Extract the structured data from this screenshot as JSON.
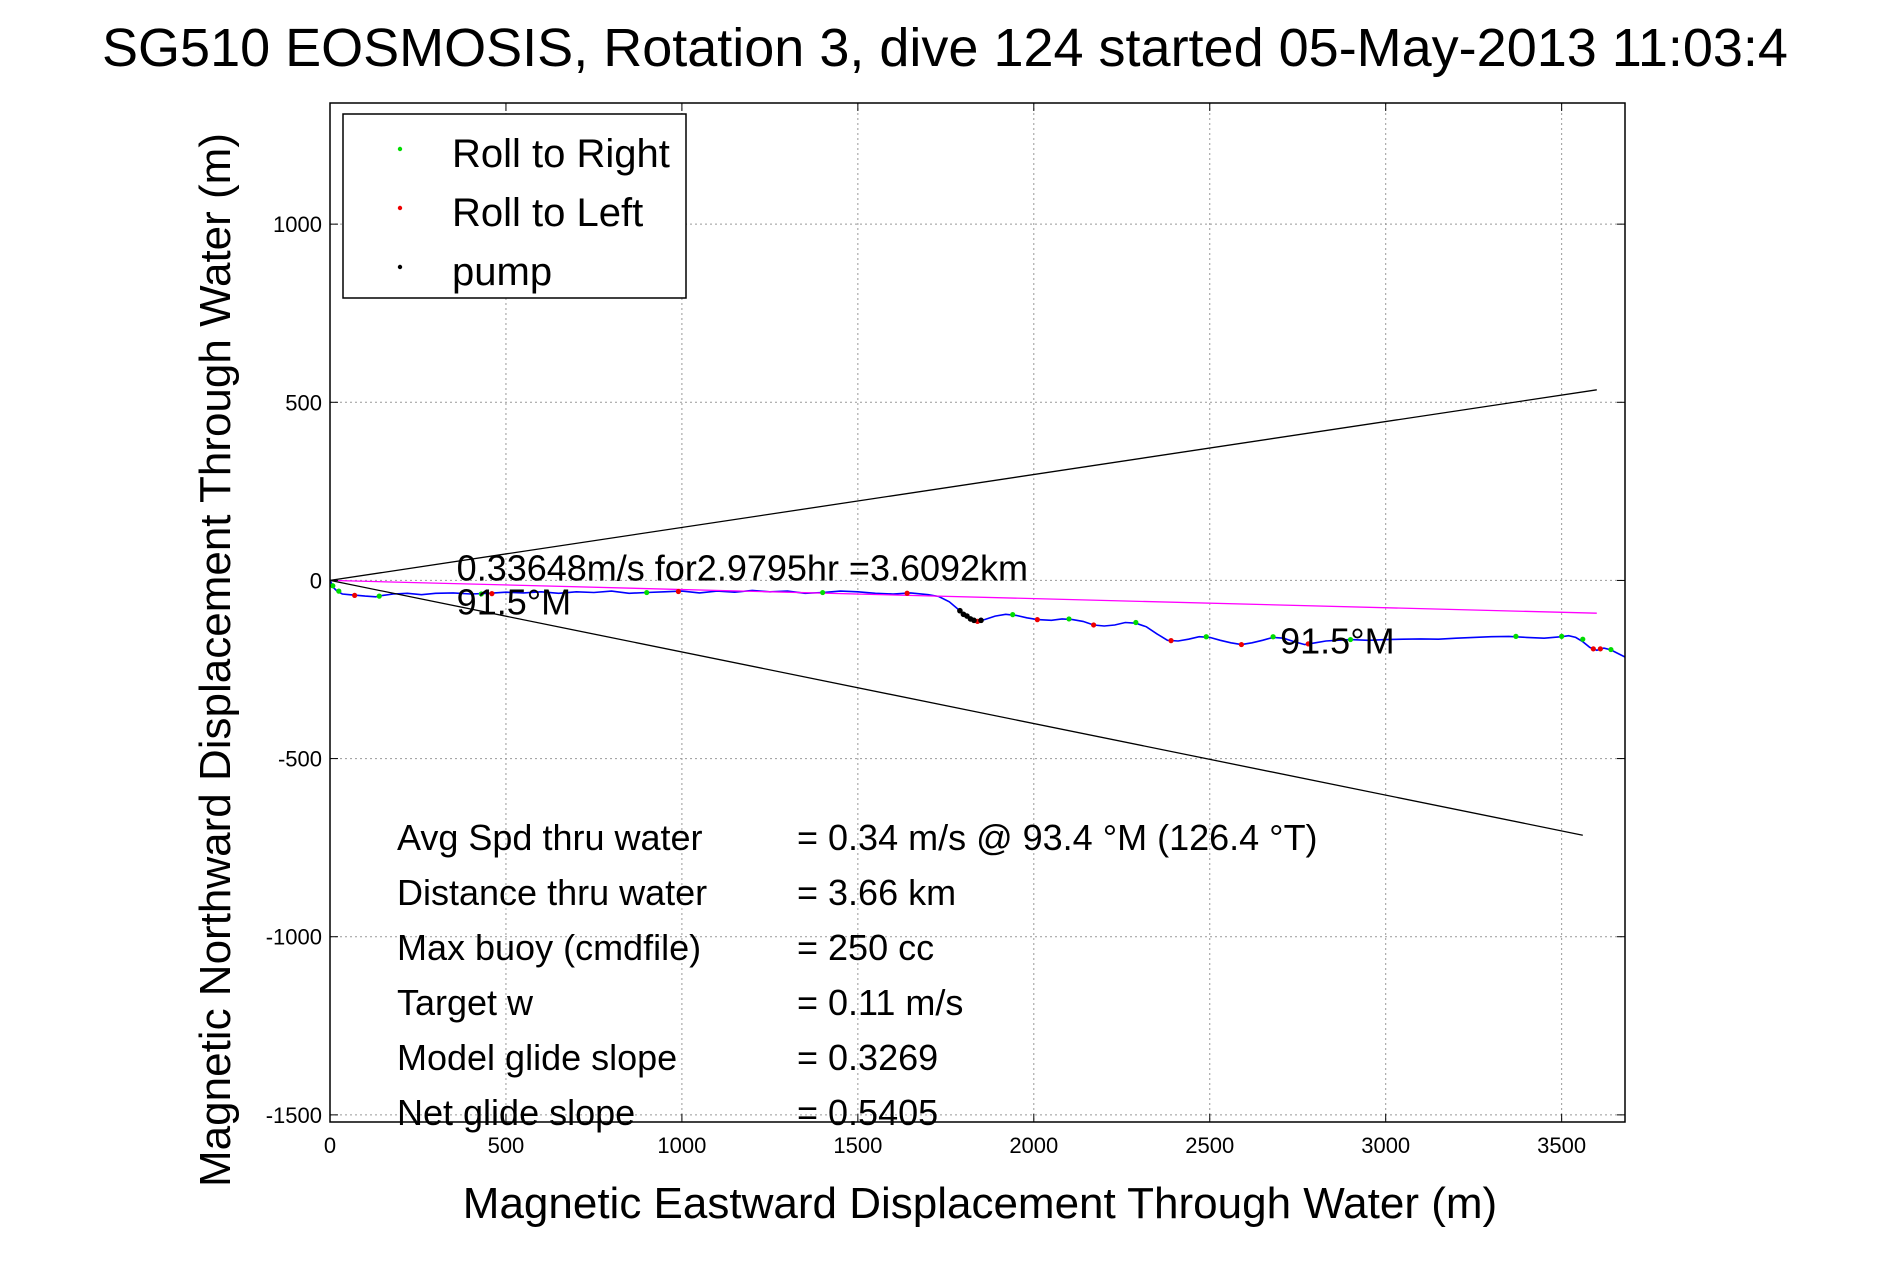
{
  "chart_data": {
    "type": "line",
    "title": "SG510 EOSMOSIS, Rotation 3, dive 124 started 05-May-2013 11:03:4",
    "xlabel": "Magnetic Eastward Displacement Through Water (m)",
    "ylabel": "Magnetic Northward Displacement Through Water (m)",
    "xlim": [
      0,
      3680
    ],
    "ylim": [
      -1520,
      1340
    ],
    "xticks": [
      0,
      500,
      1000,
      1500,
      2000,
      2500,
      3000,
      3500
    ],
    "yticks": [
      1000,
      500,
      0,
      -500,
      -1000,
      -1500
    ],
    "grid": true,
    "legend_position": "top-left",
    "legend": [
      {
        "label": "Roll to Right",
        "color": "#00dd00"
      },
      {
        "label": "Roll to Left",
        "color": "#ee0000"
      },
      {
        "label": "pump",
        "color": "#000000"
      }
    ],
    "series": [
      {
        "role": "track",
        "color": "#0000ff",
        "points": [
          [
            0,
            0
          ],
          [
            5,
            -10
          ],
          [
            10,
            -20
          ],
          [
            20,
            -30
          ],
          [
            35,
            -38
          ],
          [
            55,
            -40
          ],
          [
            80,
            -42
          ],
          [
            100,
            -44
          ],
          [
            130,
            -46
          ],
          [
            150,
            -42
          ],
          [
            180,
            -38
          ],
          [
            220,
            -36
          ],
          [
            260,
            -40
          ],
          [
            300,
            -36
          ],
          [
            350,
            -35
          ],
          [
            400,
            -38
          ],
          [
            450,
            -36
          ],
          [
            500,
            -33
          ],
          [
            550,
            -35
          ],
          [
            600,
            -32
          ],
          [
            650,
            -36
          ],
          [
            700,
            -32
          ],
          [
            750,
            -34
          ],
          [
            800,
            -30
          ],
          [
            850,
            -36
          ],
          [
            900,
            -34
          ],
          [
            950,
            -32
          ],
          [
            1000,
            -30
          ],
          [
            1050,
            -35
          ],
          [
            1100,
            -30
          ],
          [
            1150,
            -33
          ],
          [
            1200,
            -28
          ],
          [
            1250,
            -32
          ],
          [
            1300,
            -30
          ],
          [
            1350,
            -36
          ],
          [
            1400,
            -34
          ],
          [
            1450,
            -30
          ],
          [
            1500,
            -32
          ],
          [
            1550,
            -36
          ],
          [
            1600,
            -38
          ],
          [
            1650,
            -35
          ],
          [
            1700,
            -40
          ],
          [
            1730,
            -45
          ],
          [
            1760,
            -60
          ],
          [
            1790,
            -85
          ],
          [
            1815,
            -105
          ],
          [
            1835,
            -115
          ],
          [
            1860,
            -110
          ],
          [
            1890,
            -100
          ],
          [
            1920,
            -95
          ],
          [
            1950,
            -98
          ],
          [
            1980,
            -105
          ],
          [
            2010,
            -110
          ],
          [
            2050,
            -112
          ],
          [
            2080,
            -108
          ],
          [
            2110,
            -110
          ],
          [
            2140,
            -115
          ],
          [
            2170,
            -125
          ],
          [
            2200,
            -128
          ],
          [
            2230,
            -125
          ],
          [
            2260,
            -118
          ],
          [
            2290,
            -120
          ],
          [
            2320,
            -130
          ],
          [
            2350,
            -150
          ],
          [
            2380,
            -168
          ],
          [
            2410,
            -170
          ],
          [
            2440,
            -165
          ],
          [
            2470,
            -158
          ],
          [
            2500,
            -160
          ],
          [
            2530,
            -168
          ],
          [
            2560,
            -175
          ],
          [
            2590,
            -180
          ],
          [
            2620,
            -175
          ],
          [
            2650,
            -168
          ],
          [
            2680,
            -160
          ],
          [
            2710,
            -162
          ],
          [
            2740,
            -172
          ],
          [
            2770,
            -180
          ],
          [
            2800,
            -175
          ],
          [
            2830,
            -170
          ],
          [
            2860,
            -168
          ],
          [
            2900,
            -166
          ],
          [
            2950,
            -168
          ],
          [
            3000,
            -166
          ],
          [
            3050,
            -165
          ],
          [
            3100,
            -164
          ],
          [
            3150,
            -165
          ],
          [
            3200,
            -162
          ],
          [
            3250,
            -160
          ],
          [
            3300,
            -158
          ],
          [
            3350,
            -157
          ],
          [
            3400,
            -160
          ],
          [
            3450,
            -162
          ],
          [
            3500,
            -158
          ],
          [
            3520,
            -155
          ],
          [
            3540,
            -160
          ],
          [
            3560,
            -172
          ],
          [
            3580,
            -188
          ],
          [
            3600,
            -196
          ],
          [
            3620,
            -190
          ],
          [
            3640,
            -195
          ],
          [
            3660,
            -205
          ],
          [
            3680,
            -215
          ]
        ]
      },
      {
        "role": "course",
        "color": "#ff00ff",
        "points": [
          [
            0,
            0
          ],
          [
            3600,
            -92
          ]
        ]
      },
      {
        "role": "cone-upper",
        "color": "#000000",
        "points": [
          [
            0,
            0
          ],
          [
            3600,
            535
          ]
        ]
      },
      {
        "role": "cone-lower",
        "color": "#000000",
        "points": [
          [
            0,
            0
          ],
          [
            3560,
            -715
          ]
        ]
      }
    ],
    "markers": {
      "roll_right": [
        [
          8,
          -15
        ],
        [
          25,
          -30
        ],
        [
          140,
          -44
        ],
        [
          430,
          -38
        ],
        [
          900,
          -34
        ],
        [
          1400,
          -34
        ],
        [
          1940,
          -96
        ],
        [
          2100,
          -108
        ],
        [
          2290,
          -118
        ],
        [
          2490,
          -158
        ],
        [
          2680,
          -158
        ],
        [
          2900,
          -166
        ],
        [
          3370,
          -157
        ],
        [
          3500,
          -157
        ],
        [
          3560,
          -165
        ],
        [
          3640,
          -194
        ]
      ],
      "roll_left": [
        [
          70,
          -42
        ],
        [
          460,
          -37
        ],
        [
          990,
          -31
        ],
        [
          1640,
          -36
        ],
        [
          1840,
          -115
        ],
        [
          2010,
          -110
        ],
        [
          2170,
          -125
        ],
        [
          2390,
          -169
        ],
        [
          2590,
          -180
        ],
        [
          2780,
          -178
        ],
        [
          3590,
          -192
        ],
        [
          3610,
          -192
        ]
      ],
      "pump": [
        [
          1790,
          -85
        ],
        [
          1800,
          -95
        ],
        [
          1810,
          -100
        ],
        [
          1820,
          -108
        ],
        [
          1830,
          -112
        ],
        [
          1850,
          -112
        ]
      ]
    },
    "annotations": [
      {
        "text": "0.33648m/s for2.9795hr =3.6092km",
        "x": 360,
        "y": 0
      },
      {
        "text": "91.5°M",
        "x": 360,
        "y": -95
      },
      {
        "text": "91.5°M",
        "x": 2700,
        "y": -205
      }
    ],
    "stats": [
      {
        "label": "Avg Spd thru water",
        "value": "=  0.34 m/s @  93.4 °M (126.4 °T)"
      },
      {
        "label": "Distance thru water",
        "value": "=  3.66 km"
      },
      {
        "label": "Max buoy (cmdfile)",
        "value": "= 250 cc"
      },
      {
        "label": "Target w",
        "value": "= 0.11 m/s"
      },
      {
        "label": "Model glide slope",
        "value": "= 0.3269"
      },
      {
        "label": "Net glide slope",
        "value": "= 0.5405"
      }
    ]
  }
}
